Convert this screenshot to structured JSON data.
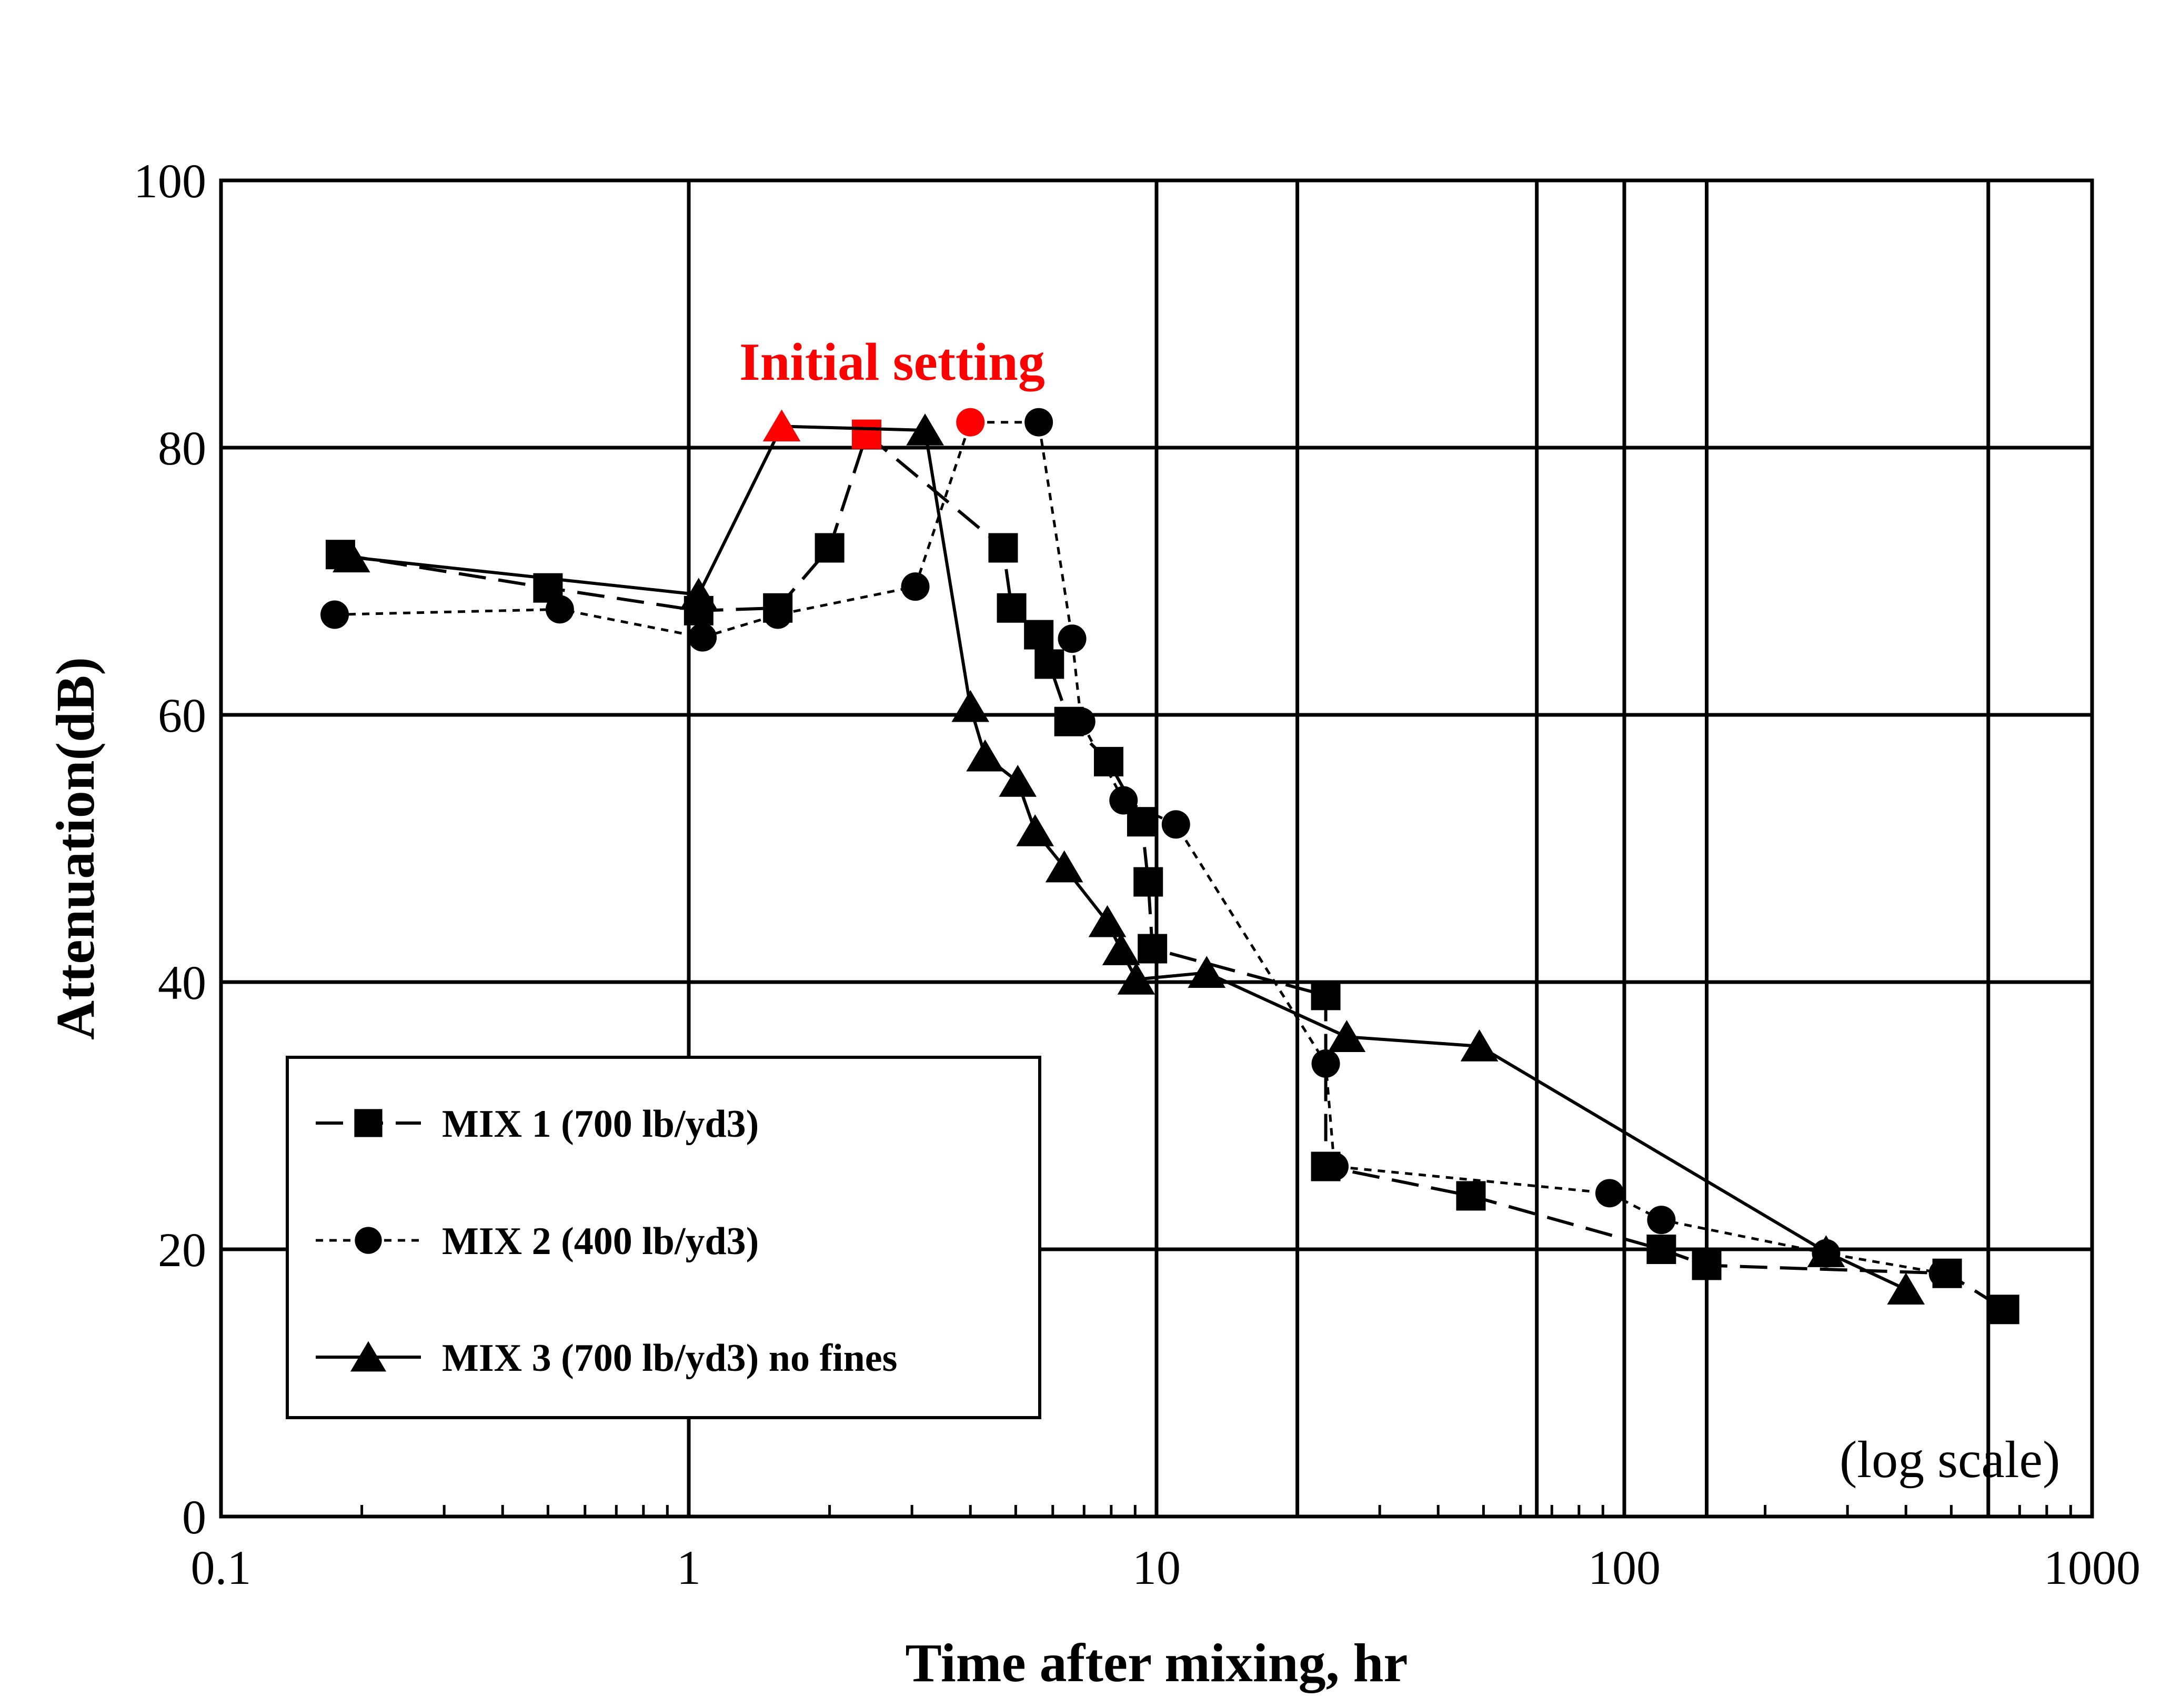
{
  "chart_data": {
    "type": "line",
    "title": "",
    "xlabel": "Time after mixing, hr",
    "ylabel": "Attenuation(dB)",
    "xscale": "log",
    "xlim": [
      0.1,
      1000
    ],
    "ylim": [
      0,
      100
    ],
    "x_ticks": [
      0.1,
      1,
      10,
      100,
      1000
    ],
    "x_tick_labels": [
      "0.1",
      "1",
      "10",
      "100",
      "1000"
    ],
    "y_ticks": [
      0,
      20,
      40,
      60,
      80,
      100
    ],
    "y_tick_labels": [
      "0",
      "20",
      "40",
      "60",
      "80",
      "100"
    ],
    "extra_vertical_gridlines": [
      20,
      65,
      150,
      600
    ],
    "grid": true,
    "legend_position": "lower-left",
    "annotation_initial": "Initial setting",
    "annotation_scale": "(log scale)",
    "colors": {
      "axis": "#000000",
      "highlight": "#ff0000"
    },
    "series": [
      {
        "name": "MIX 1 (700 lb/yd3)",
        "marker": "square",
        "line": "long-dash",
        "x": [
          0.18,
          0.5,
          1.05,
          1.55,
          2.0,
          2.4,
          4.7,
          4.9,
          5.6,
          5.9,
          6.5,
          7.9,
          9.3,
          9.6,
          9.8,
          23.0,
          23.0,
          47.0,
          120.0,
          150.0,
          490.0,
          650.0
        ],
        "y": [
          72.0,
          69.5,
          67.8,
          68.0,
          72.5,
          81.0,
          72.5,
          68.0,
          66.0,
          63.8,
          59.5,
          56.5,
          52.0,
          47.5,
          42.5,
          39.0,
          26.2,
          24.0,
          20.0,
          18.8,
          18.2,
          15.5
        ],
        "highlight_index": 5
      },
      {
        "name": "MIX 2 (400 lb/yd3)",
        "marker": "circle",
        "line": "short-dash",
        "x": [
          0.175,
          0.53,
          1.07,
          1.55,
          3.05,
          4.0,
          5.6,
          6.6,
          6.9,
          8.5,
          11.0,
          23.0,
          24.0,
          93.0,
          120.0,
          270.0,
          480.0
        ],
        "y": [
          67.5,
          67.9,
          65.8,
          67.5,
          69.6,
          81.9,
          81.9,
          65.7,
          59.5,
          53.6,
          51.8,
          33.9,
          26.2,
          24.2,
          22.2,
          19.7,
          18.2
        ],
        "highlight_index": 5
      },
      {
        "name": "MIX 3 (700 lb/yd3) no fines",
        "marker": "triangle",
        "line": "solid",
        "x": [
          0.19,
          1.05,
          1.58,
          3.2,
          4.0,
          4.3,
          5.05,
          5.5,
          6.35,
          7.85,
          8.4,
          9.05,
          12.8,
          25.5,
          49.0,
          270.0,
          400.0
        ],
        "y": [
          71.8,
          69.0,
          81.6,
          81.3,
          60.6,
          56.9,
          55.0,
          51.3,
          48.6,
          44.5,
          42.4,
          40.2,
          40.7,
          35.9,
          35.2,
          19.8,
          17.0
        ],
        "highlight_index": 2
      }
    ]
  }
}
